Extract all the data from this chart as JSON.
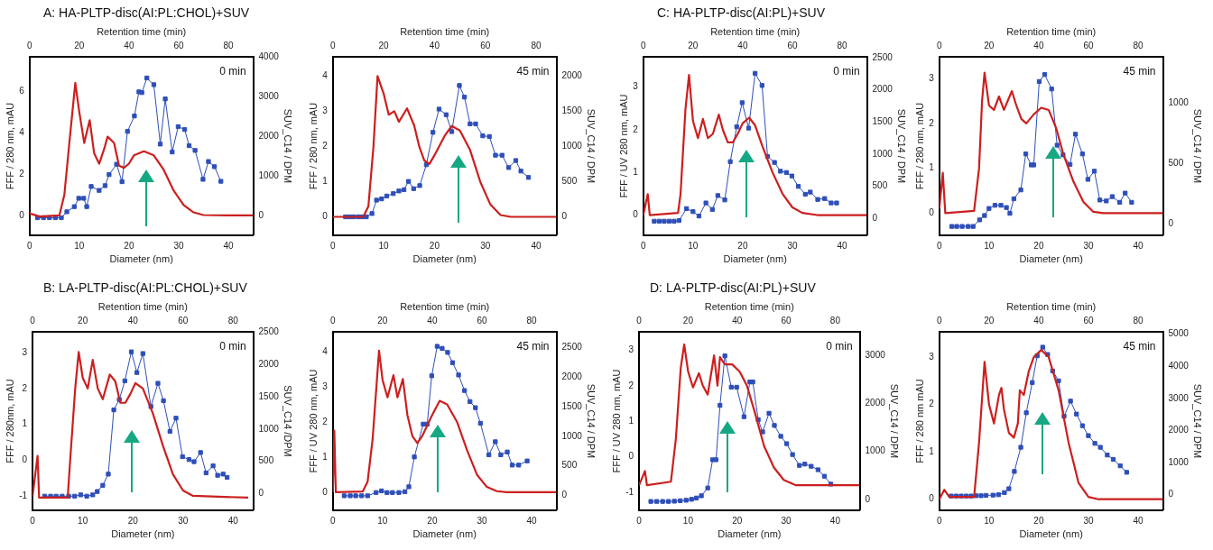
{
  "chart_data": [
    {
      "type": "line",
      "title": "A: HA-PLTP-disc(AI:PL:CHOL)+SUV",
      "xlabel": "Diameter (nm)",
      "x2label": "Retention time (min)",
      "ylabel": "FFF / 280 nm, mAU",
      "y2label": "SUV_C14 / DPM",
      "annotations": [
        "0 min"
      ],
      "xlim": [
        0,
        45
      ],
      "xticks": [
        0,
        10,
        20,
        30,
        40
      ],
      "x2lim": [
        0,
        90
      ],
      "x2ticks": [
        0,
        20,
        40,
        60,
        80
      ],
      "ylim": [
        -0.95,
        7.65
      ],
      "yticks": [
        0,
        2,
        4,
        6
      ],
      "y2lim": [
        -500,
        4000
      ],
      "y2ticks": [
        0,
        1000,
        2000,
        3000,
        4000
      ],
      "legend": false,
      "series": [
        {
          "color": "#cc1f1f",
          "marker": "none",
          "x": [
            0,
            2,
            6,
            7,
            8,
            9.2,
            10,
            11,
            12.1,
            13,
            14,
            15,
            15.7,
            17,
            18,
            19,
            20,
            21,
            23,
            25,
            27,
            29,
            31,
            33,
            35,
            40,
            45
          ],
          "values": [
            0.1,
            -0.05,
            0,
            1,
            3.5,
            6.4,
            5,
            3.5,
            4.6,
            3,
            2.5,
            3.2,
            3.8,
            3.5,
            2.4,
            2.3,
            2.5,
            2.9,
            3.1,
            2.9,
            2.2,
            1.2,
            0.5,
            0.15,
            0.02,
            0,
            0
          ]
        },
        {
          "color": "#2e4fb8",
          "marker": "square",
          "axis": "y2",
          "x": [
            1.6,
            2.8,
            4,
            5.2,
            6.4,
            7.5,
            9,
            9.9,
            10.9,
            11.5,
            12.4,
            14,
            15.2,
            16,
            17.5,
            18.6,
            19.7,
            21.1,
            22,
            22.6,
            23.6,
            25,
            26.3,
            27.3,
            28.7,
            29.9,
            31.2,
            32.1,
            33.3,
            34.9,
            36,
            37.2,
            38.5
          ],
          "values": [
            -60,
            -60,
            -60,
            -60,
            -60,
            90,
            220,
            430,
            430,
            220,
            730,
            630,
            750,
            1030,
            1290,
            850,
            2120,
            2510,
            3120,
            3100,
            3470,
            3300,
            1800,
            2940,
            1600,
            2240,
            2170,
            1760,
            1640,
            910,
            1360,
            1230,
            860
          ]
        }
      ]
    },
    {
      "type": "line",
      "xlabel": "Diameter (nm)",
      "x2label": "Retention time (min)",
      "ylabel": "FFF / 280 nm, mAU",
      "y2label": "SUV_C14 / DPM",
      "annotations": [
        "45 min"
      ],
      "xlim": [
        0,
        44
      ],
      "xticks": [
        0,
        10,
        20,
        30,
        40
      ],
      "x2lim": [
        0,
        88
      ],
      "x2ticks": [
        0,
        20,
        40,
        60,
        80
      ],
      "ylim": [
        -0.52,
        4.54
      ],
      "yticks": [
        0,
        1,
        2,
        3,
        4
      ],
      "y2lim": [
        -260,
        2270
      ],
      "y2ticks": [
        0,
        500,
        1000,
        1500,
        2000
      ],
      "legend": false,
      "series": [
        {
          "color": "#cc1f1f",
          "marker": "none",
          "x": [
            0,
            6,
            7,
            8,
            8.8,
            10,
            11,
            12.1,
            13,
            14.6,
            16,
            17,
            18,
            19,
            20,
            22,
            23.4,
            25,
            27,
            29,
            31,
            33,
            35,
            44
          ],
          "values": [
            0,
            0,
            0.3,
            2,
            4,
            3.5,
            2.9,
            3,
            2.7,
            3.08,
            2.6,
            2,
            1.6,
            1.5,
            1.75,
            2.3,
            2.58,
            2.45,
            1.9,
            1,
            0.35,
            0.05,
            0,
            0
          ]
        },
        {
          "color": "#2e4fb8",
          "marker": "square",
          "axis": "y2",
          "x": [
            2.5,
            3.3,
            4.1,
            5,
            5.8,
            6.6,
            7.7,
            8.6,
            9.6,
            10.6,
            11.9,
            13,
            14,
            14.9,
            15.9,
            17.1,
            18.4,
            19.7,
            20.9,
            22.3,
            23.4,
            24.9,
            25.9,
            27,
            28.1,
            29.5,
            30.8,
            32,
            33.3,
            34.6,
            36,
            37,
            38.5
          ],
          "values": [
            0,
            0,
            0,
            0,
            0,
            0,
            47,
            237,
            255,
            296,
            330,
            367,
            385,
            503,
            400,
            444,
            740,
            1200,
            1530,
            1450,
            1210,
            1865,
            1700,
            1320,
            1320,
            1150,
            1140,
            875,
            875,
            700,
            800,
            650,
            560
          ]
        }
      ]
    },
    {
      "type": "line",
      "title": "C: HA-PLTP-disc(AI:PL)+SUV",
      "xlabel": "Diameter (nm)",
      "x2label": "Retention time (min)",
      "ylabel": "FFF / UV 280 nm, mAU",
      "y2label": "SUV_C14 / DPM",
      "annotations": [
        "0 min"
      ],
      "xlim": [
        0,
        45
      ],
      "xticks": [
        0,
        10,
        20,
        30,
        40
      ],
      "x2lim": [
        0,
        90
      ],
      "x2ticks": [
        0,
        20,
        40,
        60,
        80
      ],
      "ylim": [
        -0.47,
        3.7
      ],
      "yticks": [
        0,
        1,
        2,
        3
      ],
      "y2lim": [
        -257,
        2510
      ],
      "y2ticks": [
        0,
        500,
        1000,
        1500,
        2000,
        2500
      ],
      "legend": false,
      "series": [
        {
          "color": "#cc1f1f",
          "marker": "none",
          "x": [
            0,
            0.9,
            1.3,
            7,
            7.5,
            8.5,
            9.2,
            10,
            11,
            12,
            13,
            14,
            15.2,
            16,
            17,
            18,
            19,
            20,
            21.3,
            22.5,
            24,
            26,
            28,
            30,
            32,
            35,
            45
          ],
          "values": [
            0,
            0.49,
            0,
            0.05,
            0.5,
            2.5,
            3.28,
            2.2,
            1.8,
            2.25,
            1.8,
            1.9,
            2.35,
            2,
            1.7,
            1.7,
            1.9,
            2.15,
            2.28,
            2.1,
            1.6,
            1,
            0.5,
            0.18,
            0.05,
            0,
            0
          ]
        },
        {
          "color": "#2e4fb8",
          "marker": "square",
          "axis": "y2",
          "x": [
            2.2,
            3.2,
            4.2,
            5.2,
            6.2,
            7.2,
            8.7,
            10,
            11.2,
            12.6,
            13.9,
            15,
            16.4,
            17.5,
            18.8,
            19.9,
            21.2,
            22.5,
            23.9,
            25,
            26.4,
            27.6,
            28.8,
            29.9,
            31.2,
            32.6,
            33.6,
            35.1,
            36.5,
            37.8,
            38.9
          ],
          "values": [
            -40,
            -40,
            -40,
            -40,
            -40,
            -30,
            155,
            108,
            40,
            243,
            142,
            358,
            290,
            885,
            1425,
            1800,
            1405,
            2257,
            2068,
            966,
            872,
            736,
            716,
            662,
            500,
            378,
            412,
            297,
            311,
            243,
            243
          ]
        }
      ]
    },
    {
      "type": "line",
      "xlabel": "Diameter (nm)",
      "x2label": "Retention time (min)",
      "ylabel": "FFF / 280 nm, mAU",
      "y2label": "SUV_C14 / DPM",
      "annotations": [
        "45 min"
      ],
      "xlim": [
        0,
        45
      ],
      "xticks": [
        0,
        10,
        20,
        30,
        40
      ],
      "x2lim": [
        0,
        90
      ],
      "x2ticks": [
        0,
        20,
        40,
        60,
        80
      ],
      "ylim": [
        -0.49,
        3.48
      ],
      "yticks": [
        0,
        1,
        2,
        3
      ],
      "y2lim": [
        -90,
        1380
      ],
      "y2ticks": [
        0,
        500,
        1000
      ],
      "legend": false,
      "series": [
        {
          "color": "#cc1f1f",
          "marker": "none",
          "x": [
            0,
            0.7,
            1.2,
            7,
            8,
            8.6,
            9.1,
            10,
            11,
            12,
            13,
            14.6,
            15.5,
            16.5,
            17.5,
            19,
            20.5,
            22,
            23.5,
            25,
            27,
            29,
            31,
            33,
            45
          ],
          "values": [
            0.1,
            0.9,
            0,
            0.05,
            1,
            2.5,
            3.13,
            2.4,
            2.3,
            2.6,
            2.3,
            2.72,
            2.4,
            2.1,
            2,
            2.2,
            2.35,
            2.3,
            1.9,
            1.3,
            0.7,
            0.25,
            0.03,
            0,
            0
          ]
        },
        {
          "color": "#2e4fb8",
          "marker": "square",
          "axis": "y2",
          "x": [
            2.5,
            3.5,
            4.6,
            5.8,
            6.8,
            8.1,
            9.1,
            10,
            11.2,
            12.4,
            13.5,
            14.2,
            15,
            16.4,
            17.4,
            18.5,
            19,
            20.1,
            21.2,
            22.6,
            23.7,
            24.9,
            26.3,
            27.4,
            28.8,
            29.9,
            31.2,
            32.3,
            33.6,
            34.8,
            36.3,
            37.4,
            38.7
          ],
          "values": [
            -18,
            -18,
            -18,
            -18,
            -18,
            36,
            72,
            130,
            156,
            156,
            138,
            90,
            210,
            283,
            580,
            489,
            489,
            1178,
            1235,
            1116,
            652,
            572,
            493,
            743,
            580,
            370,
            438,
            200,
            192,
            228,
            181,
            257,
            181
          ]
        }
      ]
    },
    {
      "type": "line",
      "title": "B: LA-PLTP-disc(AI:PL:CHOL)+SUV",
      "xlabel": "Diameter (nm)",
      "x2label": "Retention time (min)",
      "ylabel": "FFF / 280nm, mAU",
      "y2label": "SUV_C14 /DPM",
      "annotations": [
        "0 min"
      ],
      "xlim": [
        0,
        44
      ],
      "xticks": [
        0,
        10,
        20,
        30,
        40
      ],
      "x2lim": [
        0,
        88
      ],
      "x2ticks": [
        0,
        20,
        40,
        60,
        80
      ],
      "ylim": [
        -1.4,
        3.58
      ],
      "yticks": [
        -1,
        0,
        1,
        2,
        3
      ],
      "y2lim": [
        -257,
        2506
      ],
      "y2ticks": [
        0,
        500,
        1000,
        1500,
        2000,
        2500
      ],
      "legend": false,
      "series": [
        {
          "color": "#cc1f1f",
          "marker": "none",
          "x": [
            0,
            1,
            1.3,
            7,
            7.5,
            8.5,
            9.2,
            10,
            11,
            12,
            13,
            14,
            15.4,
            16.5,
            17.5,
            18.5,
            19.5,
            20.5,
            22,
            24,
            26,
            28,
            30,
            32,
            43
          ],
          "values": [
            -1,
            0.12,
            -1.05,
            -1.05,
            0,
            2,
            3.02,
            2.3,
            2,
            2.8,
            2,
            1.7,
            2.39,
            2.2,
            1.6,
            1.6,
            1.85,
            2.15,
            2,
            1.3,
            0.4,
            -0.4,
            -0.85,
            -1,
            -1.05
          ]
        },
        {
          "color": "#2e4fb8",
          "marker": "square",
          "axis": "y2",
          "x": [
            2.4,
            3.6,
            4.7,
            5.9,
            7.2,
            8.4,
            9.6,
            10.8,
            12,
            12.9,
            14,
            15.1,
            16.2,
            17.3,
            18.4,
            19.7,
            20.8,
            22,
            23.6,
            25,
            26.1,
            27.4,
            28.6,
            29.9,
            31.2,
            32.2,
            33.5,
            34.6,
            36,
            36.9,
            38,
            38.8
          ],
          "values": [
            -40,
            -40,
            -40,
            -40,
            -40,
            -40,
            -20,
            -40,
            -20,
            32,
            128,
            302,
            1298,
            1459,
            1748,
            2198,
            1877,
            2172,
            1350,
            1710,
            1440,
            964,
            1170,
            572,
            527,
            495,
            636,
            321,
            430,
            283,
            302,
            251
          ]
        }
      ]
    },
    {
      "type": "line",
      "xlabel": "Diameter (nm)",
      "x2label": "Retention time (min)",
      "ylabel": "FFF / UV 280 nm, mAU",
      "y2label": "SUV_C14 / DPM",
      "annotations": [
        "45 min"
      ],
      "xlim": [
        0,
        45
      ],
      "xticks": [
        0,
        10,
        20,
        30,
        40
      ],
      "x2lim": [
        0,
        90
      ],
      "x2ticks": [
        0,
        20,
        40,
        60,
        80
      ],
      "ylim": [
        -0.51,
        4.56
      ],
      "yticks": [
        0,
        1,
        2,
        3,
        4
      ],
      "y2lim": [
        -250,
        2763
      ],
      "y2ticks": [
        0,
        500,
        1000,
        1500,
        2000,
        2500
      ],
      "legend": false,
      "series": [
        {
          "color": "#cc1f1f",
          "marker": "none",
          "x": [
            0,
            0.3,
            0.6,
            6,
            7,
            8,
            9.3,
            10,
            11,
            12.2,
            13,
            14.1,
            15,
            16,
            17,
            18,
            20,
            21.5,
            23,
            25,
            27,
            29,
            31,
            33,
            35,
            45
          ],
          "values": [
            0,
            1.75,
            0,
            0.02,
            0.3,
            1.5,
            4.03,
            3.2,
            2.7,
            3.33,
            2.7,
            3.22,
            2.2,
            1.6,
            1.4,
            1.6,
            2.2,
            2.6,
            2.5,
            2,
            1.2,
            0.5,
            0.15,
            0.03,
            0,
            0
          ]
        },
        {
          "color": "#2e4fb8",
          "marker": "square",
          "axis": "y2",
          "x": [
            2.3,
            3.5,
            4.6,
            5.8,
            7,
            8.7,
            9.8,
            10.9,
            12,
            13.3,
            14.5,
            15.3,
            16.4,
            18.2,
            19,
            19.9,
            21,
            22,
            23.1,
            24.1,
            25.3,
            26.5,
            27.6,
            28.7,
            29.7,
            31.4,
            32.7,
            33.8,
            35.1,
            36.1,
            37.4,
            39.1
          ],
          "values": [
            -7,
            -7,
            -7,
            -7,
            -7,
            48,
            76,
            48,
            48,
            48,
            62,
            145,
            650,
            1205,
            1205,
            2022,
            2521,
            2486,
            2417,
            2244,
            2036,
            1773,
            1586,
            1482,
            1219,
            686,
            907,
            686,
            734,
            512,
            512,
            582
          ]
        }
      ]
    },
    {
      "type": "line",
      "title": "D: LA-PLTP-disc(AI:PL)+SUV",
      "xlabel": "Diameter (nm)",
      "x2label": "Retention time (min)",
      "ylabel": "FFF / UV 280 nm, mAU",
      "y2label": "SUV_C14 / DPM",
      "annotations": [
        "0 min"
      ],
      "xlim": [
        0,
        45
      ],
      "xticks": [
        0,
        10,
        20,
        30,
        40
      ],
      "x2lim": [
        0,
        90
      ],
      "x2ticks": [
        0,
        20,
        40,
        60,
        80
      ],
      "ylim": [
        -1.5,
        3.51
      ],
      "yticks": [
        -1,
        0,
        1,
        2,
        3
      ],
      "y2lim": [
        -227,
        3500
      ],
      "y2ticks": [
        0,
        1000,
        2000,
        3000
      ],
      "legend": false,
      "series": [
        {
          "color": "#cc1f1f",
          "marker": "none",
          "x": [
            0,
            1.2,
            1.6,
            6.5,
            7.5,
            8.5,
            9.2,
            10,
            11,
            12.2,
            13,
            14,
            15.3,
            16,
            16.5,
            17.5,
            19,
            20.5,
            22,
            23.5,
            25.5,
            27.5,
            29.5,
            32,
            45
          ],
          "values": [
            -0.8,
            -0.4,
            -0.8,
            -0.7,
            0.5,
            2.5,
            3.16,
            2.4,
            1.95,
            2.35,
            2,
            1.75,
            2.85,
            2,
            2.8,
            2.6,
            2.6,
            2.4,
            2,
            1.3,
            0.3,
            -0.3,
            -0.65,
            -0.8,
            -0.8
          ]
        },
        {
          "color": "#2e4fb8",
          "marker": "square",
          "axis": "y2",
          "x": [
            2.4,
            3.6,
            4.8,
            6,
            7.2,
            8.4,
            9.6,
            10.7,
            11.7,
            12.7,
            14,
            15,
            15.7,
            16.5,
            17.5,
            18.8,
            19.9,
            21.4,
            22.6,
            23.2,
            24.3,
            25.2,
            26.5,
            27.6,
            28.9,
            30.1,
            31.3,
            32.7,
            33.8,
            35.1,
            36.5,
            37.8,
            39.1
          ],
          "values": [
            -45,
            -45,
            -45,
            -45,
            -40,
            -30,
            -20,
            0,
            27,
            73,
            236,
            827,
            827,
            1964,
            3000,
            2345,
            2345,
            1727,
            2455,
            2455,
            1664,
            1410,
            1800,
            1545,
            1318,
            1164,
            936,
            709,
            736,
            691,
            618,
            482,
            318
          ]
        }
      ]
    },
    {
      "type": "line",
      "xlabel": "Diameter (nm)",
      "x2label": "Retention time (min)",
      "ylabel": "FFF / 280 nm mAU",
      "y2label": "SUV_C14 / DPM",
      "annotations": [
        "45 min"
      ],
      "xlim": [
        0,
        45
      ],
      "xticks": [
        0,
        10,
        20,
        30,
        40
      ],
      "x2lim": [
        0,
        90
      ],
      "x2ticks": [
        0,
        20,
        40,
        60,
        80
      ],
      "ylim": [
        -0.23,
        3.53
      ],
      "yticks": [
        0,
        1,
        2,
        3
      ],
      "y2lim": [
        -480,
        5070
      ],
      "y2ticks": [
        0,
        1000,
        2000,
        3000,
        4000,
        5000
      ],
      "legend": false,
      "series": [
        {
          "color": "#cc1f1f",
          "marker": "none",
          "x": [
            0,
            1,
            2,
            7,
            8,
            9.1,
            10,
            11,
            12,
            12.5,
            13,
            14,
            15,
            15.8,
            16.2,
            17,
            18,
            19,
            20.5,
            22,
            24,
            26,
            28,
            30,
            32,
            45
          ],
          "values": [
            0,
            0.2,
            0.05,
            0.05,
            1.2,
            2.9,
            2,
            1.6,
            2.2,
            2.35,
            1.9,
            1.4,
            1.3,
            1.6,
            2.3,
            2.2,
            2.7,
            3,
            3.15,
            3,
            2.3,
            1.2,
            0.35,
            0.05,
            0,
            0
          ]
        },
        {
          "color": "#2e4fb8",
          "marker": "square",
          "axis": "y2",
          "x": [
            2.4,
            3.4,
            4.4,
            5.4,
            6.4,
            7.4,
            8.4,
            9.4,
            10.8,
            11.9,
            13.1,
            14,
            15.1,
            16.4,
            17.5,
            18.7,
            19.7,
            20.8,
            21.8,
            22.8,
            24,
            25.1,
            26.4,
            27.6,
            28.8,
            30,
            31.3,
            32.4,
            33.8,
            35,
            36.4,
            37.7
          ],
          "values": [
            -40,
            -40,
            -40,
            -40,
            -40,
            -30,
            -30,
            -20,
            -13,
            0,
            67,
            188,
            726,
            1478,
            2554,
            3495,
            4328,
            4597,
            4368,
            3857,
            3548,
            2446,
            2917,
            2513,
            2151,
            1841,
            1600,
            1478,
            1237,
            1102,
            901,
            699
          ]
        }
      ]
    }
  ]
}
